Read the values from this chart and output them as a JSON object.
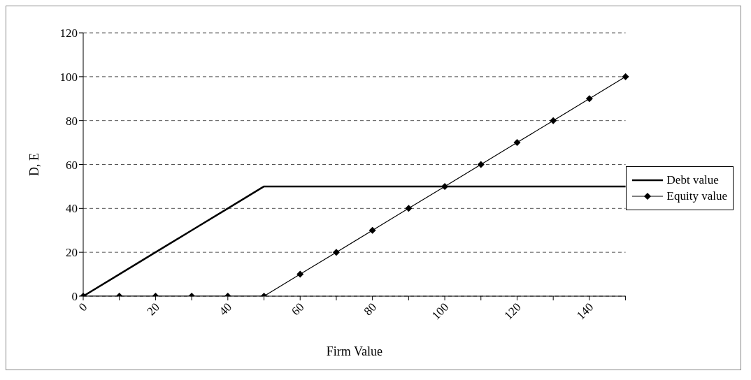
{
  "chart_data": {
    "type": "line",
    "xlabel": "Firm Value",
    "ylabel": "D, E",
    "categories": [
      "0",
      null,
      "20",
      null,
      "40",
      null,
      "60",
      null,
      "80",
      null,
      "100",
      null,
      "120",
      null,
      "140",
      null
    ],
    "series": [
      {
        "name": "Debt value",
        "color": "#000000",
        "marker": "none",
        "values": [
          0,
          10,
          20,
          30,
          40,
          50,
          50,
          50,
          50,
          50,
          50,
          50,
          50,
          50,
          50,
          50
        ]
      },
      {
        "name": "Equity value",
        "color": "#000000",
        "marker": "diamond",
        "values": [
          0,
          0,
          0,
          0,
          0,
          0,
          10,
          20,
          30,
          40,
          50,
          60,
          70,
          80,
          90,
          100
        ]
      }
    ],
    "ylim": [
      0,
      120
    ],
    "yticks": [
      0,
      20,
      40,
      60,
      80,
      100,
      120
    ],
    "grid": "y",
    "legend": "right"
  }
}
